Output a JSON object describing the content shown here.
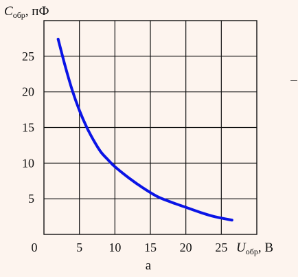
{
  "chart_data": {
    "type": "line",
    "ylabel": {
      "symbol": "C",
      "subscript": "обр",
      "unit": ", пФ"
    },
    "xlabel": {
      "symbol": "U",
      "subscript": "обр",
      "unit": ", В"
    },
    "caption": "а",
    "side_mark": "–",
    "origin_label": "0",
    "xlim": [
      0,
      30
    ],
    "ylim": [
      0,
      30
    ],
    "x_ticks": [
      5,
      10,
      15,
      20,
      25
    ],
    "y_ticks": [
      5,
      10,
      15,
      20,
      25
    ],
    "grid": true,
    "line_color": "#0a14e6",
    "series": [
      {
        "x": [
          2,
          3,
          4,
          5,
          6,
          7,
          8,
          9,
          10,
          12,
          14,
          16,
          18,
          20,
          22,
          24,
          26.5
        ],
        "y": [
          27.4,
          23.6,
          20.2,
          17.4,
          15.1,
          13.2,
          11.6,
          10.5,
          9.5,
          7.9,
          6.5,
          5.3,
          4.5,
          3.8,
          3.1,
          2.5,
          2.0
        ]
      }
    ]
  }
}
